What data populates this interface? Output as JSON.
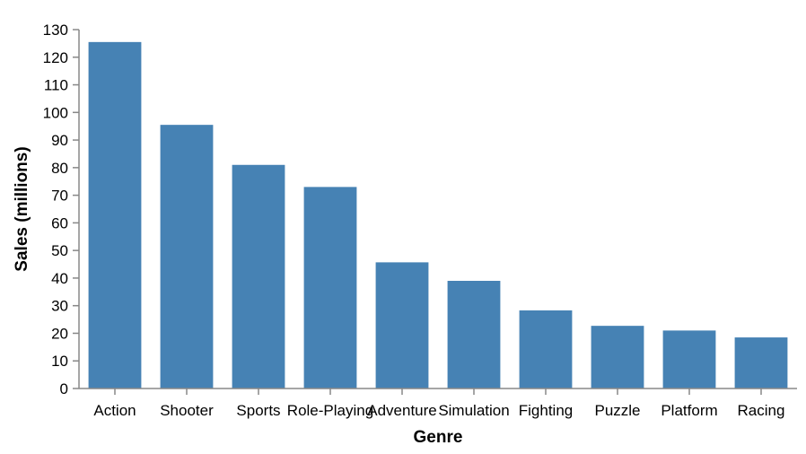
{
  "chart_data": {
    "type": "bar",
    "title": "",
    "xlabel": "Genre",
    "ylabel": "Sales (millions)",
    "categories": [
      "Action",
      "Shooter",
      "Sports",
      "Role-Playing",
      "Adventure",
      "Simulation",
      "Fighting",
      "Puzzle",
      "Platform",
      "Racing"
    ],
    "values": [
      125.5,
      95.5,
      81,
      73,
      45.7,
      39,
      28.3,
      22.7,
      21,
      18.5
    ],
    "ylim": [
      0,
      130
    ],
    "yticks": [
      0,
      10,
      20,
      30,
      40,
      50,
      60,
      70,
      80,
      90,
      100,
      110,
      120,
      130
    ],
    "grid": false,
    "bar_color": "#4682b4"
  }
}
